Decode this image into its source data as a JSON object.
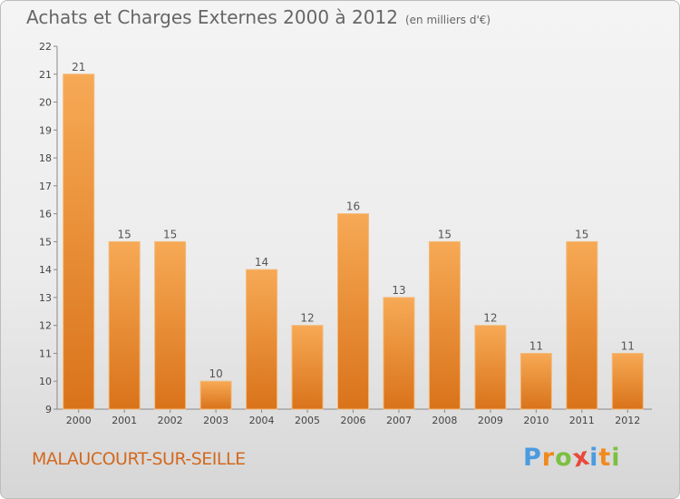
{
  "chart_data": {
    "type": "bar",
    "title": "Achats et Charges Externes 2000 à 2012",
    "subtitle": "(en milliers d'€)",
    "categories": [
      "2000",
      "2001",
      "2002",
      "2003",
      "2004",
      "2005",
      "2006",
      "2007",
      "2008",
      "2009",
      "2010",
      "2011",
      "2012"
    ],
    "values": [
      21,
      15,
      15,
      10,
      14,
      12,
      16,
      13,
      15,
      12,
      11,
      15,
      11
    ],
    "ylim": [
      9,
      22
    ],
    "yticks": [
      "9",
      "10",
      "11",
      "12",
      "13",
      "14",
      "15",
      "16",
      "17",
      "18",
      "19",
      "20",
      "21",
      "22"
    ],
    "grid": false,
    "bar_color": "#f0922e"
  },
  "commune": "MALAUCOURT-SUR-SEILLE",
  "logo": {
    "text": "Proxiti",
    "letters": [
      "P",
      "r",
      "o",
      "x",
      "i",
      "t",
      "i"
    ],
    "colors": [
      "#4b9be0",
      "#f08a1c",
      "#7cc042",
      "#e84a3c",
      "#4b9be0",
      "#f08a1c",
      "#7cc042"
    ]
  }
}
